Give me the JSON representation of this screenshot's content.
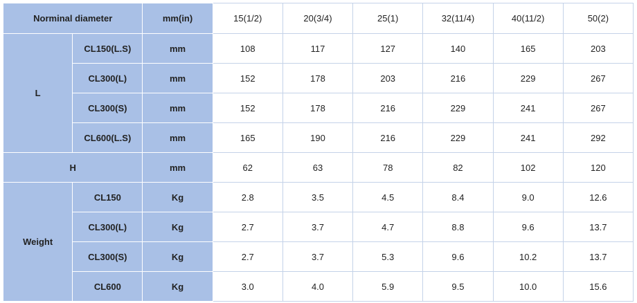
{
  "header": {
    "nominal_label": "Norminal diameter",
    "unit_label": "mm(in)",
    "sizes": [
      "15(1/2)",
      "20(3/4)",
      "25(1)",
      "32(11/4)",
      "40(11/2)",
      "50(2)"
    ]
  },
  "groups": {
    "L": {
      "label": "L",
      "rows": [
        {
          "class": "CL150(L.S)",
          "unit": "mm",
          "values": [
            "108",
            "117",
            "127",
            "140",
            "165",
            "203"
          ]
        },
        {
          "class": "CL300(L)",
          "unit": "mm",
          "values": [
            "152",
            "178",
            "203",
            "216",
            "229",
            "267"
          ]
        },
        {
          "class": "CL300(S)",
          "unit": "mm",
          "values": [
            "152",
            "178",
            "216",
            "229",
            "241",
            "267"
          ]
        },
        {
          "class": "CL600(L.S)",
          "unit": "mm",
          "values": [
            "165",
            "190",
            "216",
            "229",
            "241",
            "292"
          ]
        }
      ]
    },
    "H": {
      "label": "H",
      "unit": "mm",
      "values": [
        "62",
        "63",
        "78",
        "82",
        "102",
        "120"
      ]
    },
    "Weight": {
      "label": "Weight",
      "rows": [
        {
          "class": "CL150",
          "unit": "Kg",
          "values": [
            "2.8",
            "3.5",
            "4.5",
            "8.4",
            "9.0",
            "12.6"
          ]
        },
        {
          "class": "CL300(L)",
          "unit": "Kg",
          "values": [
            "2.7",
            "3.7",
            "4.7",
            "8.8",
            "9.6",
            "13.7"
          ]
        },
        {
          "class": "CL300(S)",
          "unit": "Kg",
          "values": [
            "2.7",
            "3.7",
            "5.3",
            "9.6",
            "10.2",
            "13.7"
          ]
        },
        {
          "class": "CL600",
          "unit": "Kg",
          "values": [
            "3.0",
            "4.0",
            "5.9",
            "9.5",
            "10.0",
            "15.6"
          ]
        }
      ]
    }
  },
  "colors": {
    "header_bg": "#a9c0e6",
    "cell_bg": "#ffffff",
    "grid": "#c4d2e8"
  }
}
